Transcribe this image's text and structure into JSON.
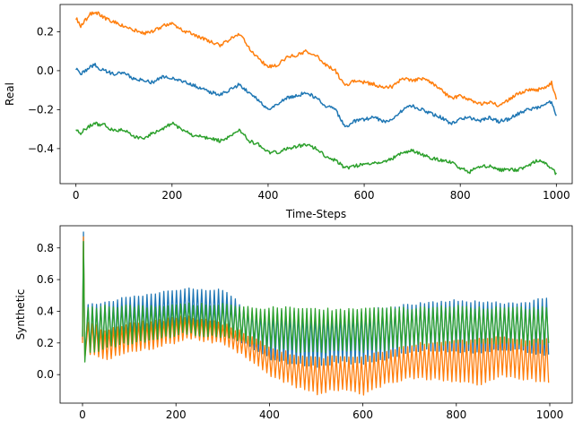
{
  "chart_data": [
    {
      "type": "line",
      "title": "",
      "xlabel": "Time-Steps",
      "ylabel": "Real",
      "xlim": [
        -33,
        1033
      ],
      "ylim": [
        -0.58,
        0.34
      ],
      "xticks": [
        0,
        200,
        400,
        600,
        800,
        1000
      ],
      "yticks": [
        -0.4,
        -0.2,
        0.0,
        0.2
      ],
      "xtick_labels": [
        "0",
        "200",
        "400",
        "600",
        "800",
        "1000"
      ],
      "ytick_labels": [
        "−0.4",
        "−0.2",
        "0.0",
        "0.2"
      ],
      "grid": false,
      "series": [
        {
          "color": "#1f77b4",
          "x": [
            0,
            10,
            20,
            30,
            40,
            50,
            60,
            80,
            100,
            120,
            140,
            160,
            180,
            200,
            220,
            240,
            260,
            280,
            300,
            320,
            340,
            360,
            380,
            400,
            420,
            440,
            460,
            480,
            500,
            520,
            540,
            560,
            580,
            600,
            620,
            640,
            660,
            680,
            700,
            720,
            740,
            760,
            780,
            800,
            820,
            840,
            860,
            880,
            900,
            920,
            940,
            960,
            980,
            990,
            1000
          ],
          "y": [
            0.01,
            -0.02,
            0.0,
            0.02,
            0.03,
            0.01,
            0.0,
            -0.02,
            -0.01,
            -0.04,
            -0.05,
            -0.06,
            -0.03,
            -0.04,
            -0.05,
            -0.07,
            -0.09,
            -0.11,
            -0.12,
            -0.1,
            -0.07,
            -0.11,
            -0.15,
            -0.2,
            -0.17,
            -0.14,
            -0.13,
            -0.11,
            -0.14,
            -0.18,
            -0.2,
            -0.29,
            -0.26,
            -0.25,
            -0.24,
            -0.26,
            -0.25,
            -0.2,
            -0.18,
            -0.2,
            -0.22,
            -0.24,
            -0.27,
            -0.25,
            -0.24,
            -0.26,
            -0.24,
            -0.26,
            -0.25,
            -0.22,
            -0.2,
            -0.19,
            -0.17,
            -0.16,
            -0.24
          ]
        },
        {
          "color": "#ff7f0e",
          "x": [
            0,
            10,
            20,
            30,
            40,
            50,
            60,
            80,
            100,
            120,
            140,
            160,
            180,
            200,
            220,
            240,
            260,
            280,
            300,
            320,
            340,
            360,
            380,
            400,
            420,
            440,
            460,
            480,
            500,
            520,
            540,
            560,
            580,
            600,
            620,
            640,
            660,
            680,
            700,
            720,
            740,
            760,
            780,
            800,
            820,
            840,
            860,
            880,
            900,
            920,
            940,
            960,
            980,
            990,
            1000
          ],
          "y": [
            0.27,
            0.23,
            0.26,
            0.29,
            0.3,
            0.29,
            0.27,
            0.25,
            0.23,
            0.21,
            0.19,
            0.2,
            0.23,
            0.24,
            0.21,
            0.19,
            0.17,
            0.15,
            0.13,
            0.16,
            0.19,
            0.12,
            0.06,
            0.02,
            0.03,
            0.07,
            0.08,
            0.1,
            0.08,
            0.03,
            0.0,
            -0.08,
            -0.05,
            -0.06,
            -0.07,
            -0.09,
            -0.08,
            -0.04,
            -0.05,
            -0.04,
            -0.06,
            -0.1,
            -0.14,
            -0.13,
            -0.15,
            -0.17,
            -0.16,
            -0.18,
            -0.15,
            -0.12,
            -0.1,
            -0.1,
            -0.08,
            -0.06,
            -0.15
          ]
        },
        {
          "color": "#2ca02c",
          "x": [
            0,
            10,
            20,
            30,
            40,
            50,
            60,
            80,
            100,
            120,
            140,
            160,
            180,
            200,
            220,
            240,
            260,
            280,
            300,
            320,
            340,
            360,
            380,
            400,
            420,
            440,
            460,
            480,
            500,
            520,
            540,
            560,
            580,
            600,
            620,
            640,
            660,
            680,
            700,
            720,
            740,
            760,
            780,
            800,
            820,
            840,
            860,
            880,
            900,
            920,
            940,
            960,
            980,
            990,
            1000
          ],
          "y": [
            -0.31,
            -0.32,
            -0.3,
            -0.28,
            -0.27,
            -0.28,
            -0.28,
            -0.31,
            -0.3,
            -0.34,
            -0.35,
            -0.32,
            -0.3,
            -0.27,
            -0.3,
            -0.33,
            -0.34,
            -0.35,
            -0.36,
            -0.34,
            -0.3,
            -0.36,
            -0.38,
            -0.42,
            -0.42,
            -0.4,
            -0.39,
            -0.38,
            -0.4,
            -0.44,
            -0.46,
            -0.5,
            -0.49,
            -0.48,
            -0.47,
            -0.47,
            -0.45,
            -0.42,
            -0.41,
            -0.43,
            -0.45,
            -0.46,
            -0.47,
            -0.5,
            -0.52,
            -0.49,
            -0.49,
            -0.51,
            -0.51,
            -0.51,
            -0.49,
            -0.46,
            -0.48,
            -0.5,
            -0.53
          ]
        }
      ]
    },
    {
      "type": "line",
      "title": "",
      "xlabel": "",
      "ylabel": "Synthetic",
      "xlim": [
        -48,
        1048
      ],
      "ylim": [
        -0.18,
        0.94
      ],
      "xticks": [
        0,
        200,
        400,
        600,
        800,
        1000
      ],
      "yticks": [
        0.0,
        0.2,
        0.4,
        0.6,
        0.8
      ],
      "xtick_labels": [
        "0",
        "200",
        "400",
        "600",
        "800",
        "1000"
      ],
      "ytick_labels": [
        "0.0",
        "0.2",
        "0.4",
        "0.6",
        "0.8"
      ],
      "grid": false,
      "oscillation_period": 9,
      "series": [
        {
          "color": "#1f77b4",
          "spike": [
            0.22,
            0.9,
            0.12
          ],
          "x": [
            20,
            50,
            100,
            150,
            200,
            220,
            250,
            300,
            340,
            360,
            400,
            450,
            500,
            550,
            600,
            650,
            700,
            750,
            800,
            850,
            900,
            950,
            1000
          ],
          "upper": [
            0.44,
            0.46,
            0.49,
            0.51,
            0.53,
            0.55,
            0.54,
            0.53,
            0.44,
            0.4,
            0.4,
            0.4,
            0.38,
            0.39,
            0.4,
            0.42,
            0.44,
            0.45,
            0.47,
            0.46,
            0.45,
            0.46,
            0.48
          ],
          "lower": [
            0.14,
            0.18,
            0.22,
            0.24,
            0.27,
            0.28,
            0.27,
            0.25,
            0.2,
            0.18,
            0.1,
            0.07,
            0.05,
            0.08,
            0.07,
            0.1,
            0.15,
            0.16,
            0.15,
            0.14,
            0.16,
            0.15,
            0.12
          ]
        },
        {
          "color": "#ff7f0e",
          "spike": [
            0.2,
            0.87,
            0.1
          ],
          "x": [
            20,
            50,
            100,
            150,
            200,
            220,
            250,
            300,
            340,
            360,
            400,
            450,
            500,
            550,
            600,
            650,
            700,
            750,
            800,
            850,
            900,
            950,
            1000
          ],
          "upper": [
            0.32,
            0.27,
            0.33,
            0.33,
            0.36,
            0.37,
            0.35,
            0.32,
            0.27,
            0.24,
            0.17,
            0.13,
            0.1,
            0.12,
            0.12,
            0.14,
            0.19,
            0.2,
            0.21,
            0.22,
            0.24,
            0.22,
            0.23
          ],
          "lower": [
            0.12,
            0.1,
            0.14,
            0.17,
            0.2,
            0.23,
            0.22,
            0.2,
            0.13,
            0.09,
            0.0,
            -0.07,
            -0.12,
            -0.09,
            -0.13,
            -0.06,
            -0.02,
            -0.03,
            -0.04,
            -0.06,
            -0.01,
            -0.03,
            -0.05
          ]
        },
        {
          "color": "#2ca02c",
          "spike": [
            0.24,
            0.84,
            0.08
          ],
          "x": [
            20,
            50,
            100,
            150,
            200,
            220,
            250,
            300,
            340,
            360,
            400,
            450,
            500,
            550,
            600,
            650,
            700,
            750,
            800,
            850,
            900,
            950,
            1000
          ],
          "upper": [
            0.42,
            0.43,
            0.43,
            0.43,
            0.44,
            0.45,
            0.44,
            0.44,
            0.43,
            0.42,
            0.42,
            0.42,
            0.41,
            0.41,
            0.41,
            0.42,
            0.42,
            0.42,
            0.43,
            0.42,
            0.42,
            0.42,
            0.42
          ],
          "lower": [
            0.14,
            0.17,
            0.2,
            0.22,
            0.25,
            0.26,
            0.25,
            0.24,
            0.22,
            0.2,
            0.17,
            0.15,
            0.14,
            0.15,
            0.15,
            0.16,
            0.18,
            0.19,
            0.2,
            0.2,
            0.19,
            0.19,
            0.2
          ]
        }
      ]
    }
  ]
}
